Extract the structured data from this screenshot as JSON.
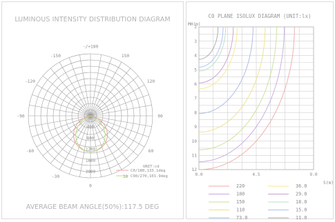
{
  "chart_data": [
    {
      "type": "polar",
      "title": "LUMINOUS INTENSITY DISTRIBUTION DIAGRAM",
      "footer": "AVERAGE BEAM ANGLE(50%):117.5 DEG",
      "angle_labels": [
        "-/+180",
        "150",
        "120",
        "90",
        "60",
        "30",
        "0",
        "-30",
        "-60",
        "-90",
        "-120",
        "-150"
      ],
      "radial_labels": [
        "400",
        "800",
        "1200",
        "1600",
        "2000"
      ],
      "radial_max": 2000,
      "unit_label": "UNIT:cd",
      "series": [
        {
          "name": "C0/180,133.1deg",
          "color": "#f0a0a0",
          "points": [
            [
              0,
              1300
            ],
            [
              10,
              1270
            ],
            [
              20,
              1200
            ],
            [
              30,
              1100
            ],
            [
              40,
              950
            ],
            [
              50,
              760
            ],
            [
              60,
              540
            ],
            [
              66,
              390
            ],
            [
              72,
              180
            ],
            [
              78,
              40
            ],
            [
              84,
              0
            ]
          ]
        },
        {
          "name": "C90/270,101.9deg",
          "color": "#b8e088",
          "points": [
            [
              0,
              1300
            ],
            [
              10,
              1260
            ],
            [
              20,
              1170
            ],
            [
              30,
              1020
            ],
            [
              40,
              820
            ],
            [
              50,
              590
            ],
            [
              58,
              370
            ],
            [
              65,
              170
            ],
            [
              72,
              30
            ],
            [
              76,
              0
            ]
          ]
        }
      ]
    },
    {
      "type": "line",
      "title": "C0 PLANE ISOLUX DIAGRAM (UNIT:lx)",
      "ylabel": "MH(m)",
      "xlabel": "S(m)",
      "x_ticks": [
        "0.0",
        "4.5",
        "9.0"
      ],
      "y_ticks": [
        "2",
        "3",
        "4",
        "5",
        "6",
        "7",
        "8",
        "9",
        "10",
        "11",
        "12"
      ],
      "xlim": [
        0,
        9
      ],
      "ylim": [
        2,
        12
      ],
      "series": [
        {
          "name": "220",
          "color": "#f0a8a8",
          "reach": 7.5
        },
        {
          "name": "180",
          "color": "#c8a8e0",
          "reach": 6.7
        },
        {
          "name": "150",
          "color": "#c8e098",
          "reach": 6.1
        },
        {
          "name": "110",
          "color": "#f0e080",
          "reach": 5.2
        },
        {
          "name": "73.0",
          "color": "#a8b8e8",
          "reach": 4.25
        },
        {
          "name": "36.0",
          "color": "#f8e888",
          "reach": 3.0
        },
        {
          "name": "29.0",
          "color": "#c8a0d0",
          "reach": 2.7
        },
        {
          "name": "18.0",
          "color": "#b8e0c8",
          "reach": 2.1
        },
        {
          "name": "15.0",
          "color": "#a8c0f0",
          "reach": 1.9
        },
        {
          "name": "11.0",
          "color": "#a8a8a8",
          "reach": 1.5
        }
      ]
    }
  ]
}
